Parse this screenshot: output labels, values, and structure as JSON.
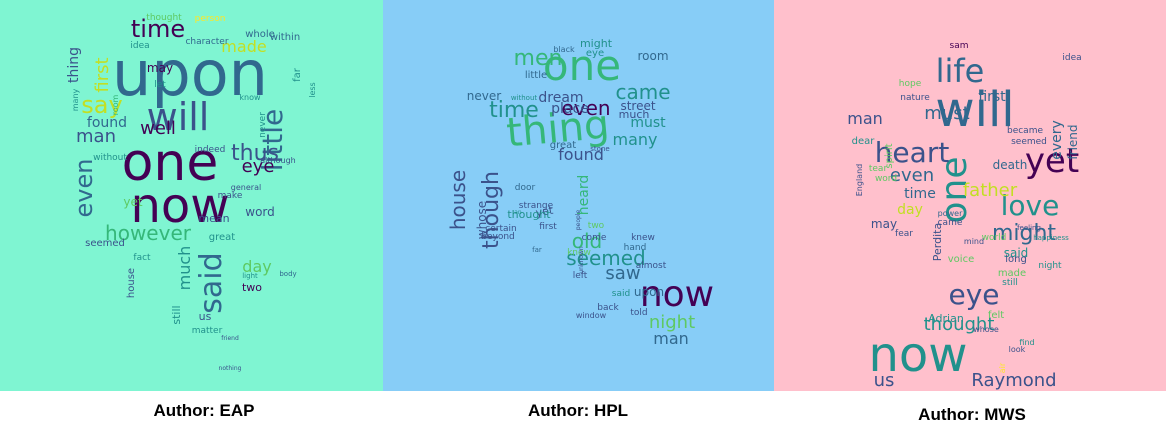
{
  "colors": {
    "eap_background": "#7ff5d2",
    "hpl_background": "#87cdf7",
    "mws_background": "#ffc0cc",
    "word_palette": [
      "#440154",
      "#3b528b",
      "#31688e",
      "#21918c",
      "#35b779",
      "#5ec962",
      "#c2df23",
      "#fde725"
    ]
  },
  "panels": [
    {
      "id": "eap",
      "caption": "Author: EAP",
      "words": [
        "upon",
        "one",
        "now",
        "will",
        "time",
        "said",
        "say",
        "little",
        "however",
        "even",
        "thus",
        "well",
        "man",
        "eye",
        "found",
        "first",
        "made",
        "thing",
        "much",
        "day",
        "may",
        "word",
        "great",
        "mean",
        "yet",
        "two",
        "us",
        "seemed",
        "matter",
        "house",
        "still",
        "indeed",
        "never",
        "let",
        "far",
        "without",
        "within",
        "whole",
        "idea",
        "thought",
        "character",
        "person",
        "room",
        "light",
        "although",
        "general",
        "make",
        "fact",
        "many",
        "friend",
        "body",
        "less",
        "know",
        "nothing",
        "point",
        "appeared"
      ]
    },
    {
      "id": "hpl",
      "caption": "Author: HPL",
      "words": [
        "one",
        "thing",
        "now",
        "time",
        "men",
        "even",
        "came",
        "found",
        "though",
        "house",
        "old",
        "seemed",
        "saw",
        "night",
        "man",
        "must",
        "place",
        "never",
        "dream",
        "many",
        "whose",
        "upon",
        "heard",
        "yet",
        "street",
        "much",
        "room",
        "eye",
        "little",
        "might",
        "great",
        "black",
        "thought",
        "door",
        "strange",
        "certain",
        "know",
        "left",
        "said",
        "told",
        "almost",
        "hand",
        "knew",
        "come",
        "two",
        "beyond",
        "first",
        "back",
        "window",
        "unknown",
        "people",
        "without",
        "stone",
        "far",
        "an"
      ]
    },
    {
      "id": "mws",
      "caption": "Author: MWS",
      "words": [
        "will",
        "one",
        "now",
        "life",
        "yet",
        "heart",
        "love",
        "eye",
        "might",
        "must",
        "first",
        "every",
        "friend",
        "man",
        "father",
        "thought",
        "even",
        "time",
        "day",
        "Raymond",
        "us",
        "death",
        "said",
        "may",
        "made",
        "voice",
        "Perdita",
        "Adrian",
        "long",
        "spirit",
        "world",
        "nature",
        "became",
        "seemed",
        "felt",
        "dear",
        "still",
        "night",
        "tear",
        "word",
        "fear",
        "came",
        "hope",
        "idea",
        "whose",
        "find",
        "sam",
        "air",
        "England",
        "happiness",
        "power",
        "mind",
        "look",
        "feeling"
      ]
    }
  ]
}
